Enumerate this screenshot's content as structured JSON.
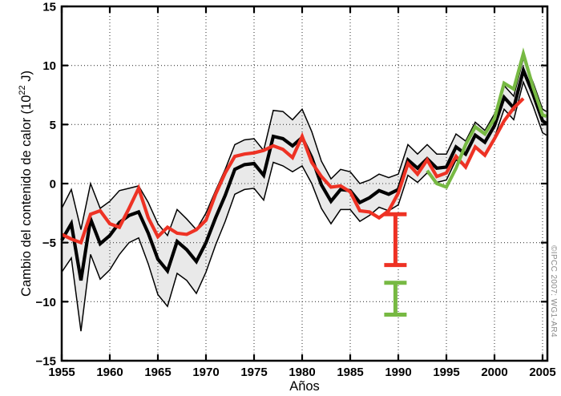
{
  "figure": {
    "xlabel": "Años",
    "ylabel_prefix": "Cambio del contenido de calor (10",
    "ylabel_sup": "22",
    "ylabel_suffix": " J)",
    "credit": "©IPCC 2007: WG1-AR4"
  },
  "chart_data": {
    "type": "line",
    "title": "",
    "xlabel": "Años",
    "ylabel": "Cambio del contenido de calor (10^22 J)",
    "xlim": [
      1955,
      2005.5
    ],
    "ylim": [
      -15,
      15
    ],
    "xticks": [
      1955,
      1960,
      1965,
      1970,
      1975,
      1980,
      1985,
      1990,
      1995,
      2000,
      2005
    ],
    "yticks": [
      15,
      10,
      5,
      0,
      -5,
      -10,
      -15
    ],
    "ytick_labels": [
      "15",
      "10",
      "5",
      "0",
      "−5",
      "−10",
      "−15"
    ],
    "grid": {
      "style": "dotted",
      "color": "#3c3c3c"
    },
    "legend": "none",
    "band": {
      "fill": "#e9e9e9"
    },
    "series": [
      {
        "name": "black-central-line",
        "color": "#000000",
        "width": 4.2,
        "x": [
          1955,
          1956,
          1957,
          1958,
          1959,
          1960,
          1961,
          1962,
          1963,
          1964,
          1965,
          1966,
          1967,
          1968,
          1969,
          1970,
          1971,
          1972,
          1973,
          1974,
          1975,
          1976,
          1977,
          1978,
          1979,
          1980,
          1981,
          1982,
          1983,
          1984,
          1985,
          1986,
          1987,
          1988,
          1989,
          1990,
          1991,
          1992,
          1993,
          1994,
          1995,
          1996,
          1997,
          1998,
          1999,
          2000,
          2001,
          2002,
          2003,
          2004,
          2005,
          2005.4
        ],
        "values": [
          -4.8,
          -3.4,
          -8.2,
          -3.0,
          -5.1,
          -4.4,
          -3.3,
          -2.7,
          -2.4,
          -4.2,
          -6.4,
          -7.4,
          -4.9,
          -5.6,
          -6.6,
          -5.0,
          -2.9,
          -1.0,
          1.2,
          1.6,
          1.7,
          0.7,
          4.0,
          3.8,
          3.2,
          3.9,
          2.2,
          -0.1,
          -1.5,
          -0.5,
          -0.6,
          -1.6,
          -1.2,
          -0.6,
          -0.9,
          -0.5,
          2.0,
          1.3,
          2.1,
          1.3,
          1.4,
          3.1,
          2.5,
          4.1,
          3.5,
          4.9,
          7.3,
          6.4,
          9.6,
          7.6,
          5.3,
          5.1
        ]
      },
      {
        "name": "uncertainty-upper-line",
        "color": "#000000",
        "width": 1.5,
        "x": [
          1955,
          1956,
          1957,
          1958,
          1959,
          1960,
          1961,
          1962,
          1963,
          1964,
          1965,
          1966,
          1967,
          1968,
          1969,
          1970,
          1971,
          1972,
          1973,
          1974,
          1975,
          1976,
          1977,
          1978,
          1979,
          1980,
          1981,
          1982,
          1983,
          1984,
          1985,
          1986,
          1987,
          1988,
          1989,
          1990,
          1991,
          1992,
          1993,
          1994,
          1995,
          1996,
          1997,
          1998,
          1999,
          2000,
          2001,
          2002,
          2003,
          2004,
          2005,
          2005.4
        ],
        "values": [
          -2.1,
          -0.5,
          -3.9,
          0.0,
          -2.1,
          -1.5,
          -0.6,
          -0.4,
          -0.2,
          -1.6,
          -3.4,
          -4.4,
          -2.2,
          -3.0,
          -3.9,
          -2.5,
          -0.6,
          1.2,
          3.3,
          3.7,
          3.8,
          2.8,
          6.2,
          6.1,
          5.4,
          6.3,
          4.4,
          1.9,
          0.4,
          1.2,
          1.0,
          0.0,
          0.3,
          0.8,
          0.5,
          0.8,
          3.3,
          2.5,
          3.3,
          2.5,
          2.5,
          4.2,
          3.6,
          5.2,
          4.5,
          5.9,
          8.3,
          7.4,
          10.6,
          8.6,
          6.3,
          6.1
        ]
      },
      {
        "name": "uncertainty-lower-line",
        "color": "#000000",
        "width": 1.5,
        "x": [
          1955,
          1956,
          1957,
          1958,
          1959,
          1960,
          1961,
          1962,
          1963,
          1964,
          1965,
          1966,
          1967,
          1968,
          1969,
          1970,
          1971,
          1972,
          1973,
          1974,
          1975,
          1976,
          1977,
          1978,
          1979,
          1980,
          1981,
          1982,
          1983,
          1984,
          1985,
          1986,
          1987,
          1988,
          1989,
          1990,
          1991,
          1992,
          1993,
          1994,
          1995,
          1996,
          1997,
          1998,
          1999,
          2000,
          2001,
          2002,
          2003,
          2004,
          2005,
          2005.4
        ],
        "values": [
          -7.5,
          -6.3,
          -12.5,
          -6.0,
          -8.1,
          -7.3,
          -6.0,
          -5.0,
          -4.6,
          -6.8,
          -9.4,
          -10.4,
          -7.6,
          -8.2,
          -9.3,
          -7.5,
          -5.2,
          -3.2,
          -0.9,
          -0.5,
          -0.4,
          -1.4,
          1.8,
          1.5,
          1.0,
          1.5,
          0.0,
          -2.1,
          -3.4,
          -2.2,
          -2.2,
          -3.2,
          -2.7,
          -2.0,
          -2.3,
          -1.8,
          0.7,
          0.1,
          0.9,
          0.1,
          0.3,
          2.0,
          1.4,
          3.0,
          2.5,
          3.9,
          6.3,
          5.4,
          8.6,
          6.6,
          4.3,
          4.1
        ]
      },
      {
        "name": "red-line",
        "color": "#ee3224",
        "width": 4.2,
        "x": [
          1955,
          1956,
          1957,
          1958,
          1959,
          1960,
          1961,
          1962,
          1963,
          1964,
          1965,
          1966,
          1967,
          1968,
          1969,
          1970,
          1971,
          1972,
          1973,
          1974,
          1975,
          1976,
          1977,
          1978,
          1979,
          1980,
          1981,
          1982,
          1983,
          1984,
          1985,
          1986,
          1987,
          1988,
          1989,
          1990,
          1991,
          1992,
          1993,
          1994,
          1995,
          1996,
          1997,
          1998,
          1999,
          2000,
          2001,
          2002,
          2003
        ],
        "values": [
          -4.3,
          -4.7,
          -5.0,
          -2.6,
          -2.3,
          -3.4,
          -3.7,
          -2.1,
          -0.4,
          -2.9,
          -4.5,
          -3.7,
          -4.2,
          -4.3,
          -3.9,
          -3.1,
          -0.9,
          0.9,
          2.3,
          2.5,
          2.6,
          2.8,
          3.2,
          2.9,
          2.2,
          4.0,
          1.8,
          0.6,
          -0.3,
          -0.2,
          -0.7,
          -2.3,
          -2.4,
          -2.9,
          -2.3,
          -0.8,
          1.7,
          0.8,
          2.0,
          0.6,
          0.9,
          2.3,
          1.4,
          3.1,
          2.4,
          3.8,
          5.3,
          6.4,
          7.2
        ]
      },
      {
        "name": "green-line",
        "color": "#77b943",
        "width": 4.2,
        "x": [
          1993,
          1994,
          1995,
          1996,
          1997,
          1998,
          1999,
          2000,
          2001,
          2002,
          2003,
          2004,
          2005,
          2005.4
        ],
        "values": [
          1.1,
          0.0,
          -0.3,
          1.3,
          3.3,
          4.8,
          4.2,
          5.5,
          8.5,
          8.0,
          11.0,
          8.2,
          5.8,
          5.7
        ]
      }
    ],
    "error_bars": [
      {
        "name": "red-error-bar",
        "color": "#ee3224",
        "x": 1989.7,
        "y_top": -2.6,
        "y_bottom": -6.9
      },
      {
        "name": "green-error-bar",
        "color": "#77b943",
        "x": 1989.7,
        "y_top": -8.4,
        "y_bottom": -11.1
      }
    ]
  }
}
